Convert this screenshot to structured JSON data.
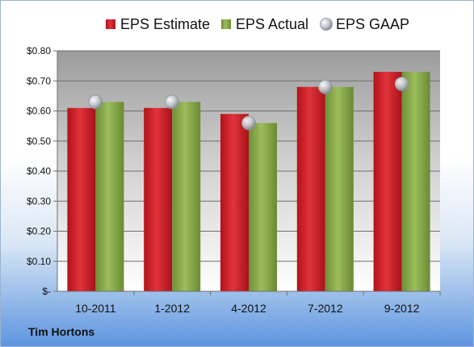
{
  "company_label": "Tim Hortons",
  "chart_data": {
    "type": "bar",
    "categories": [
      "10-2011",
      "1-2012",
      "4-2012",
      "7-2012",
      "9-2012"
    ],
    "series": [
      {
        "name": "EPS Estimate",
        "kind": "bar",
        "color": "#d0202a",
        "values": [
          0.61,
          0.61,
          0.59,
          0.68,
          0.73
        ]
      },
      {
        "name": "EPS Actual",
        "kind": "bar",
        "color": "#8aad4a",
        "values": [
          0.63,
          0.63,
          0.56,
          0.68,
          0.73
        ]
      },
      {
        "name": "EPS GAAP",
        "kind": "marker",
        "color": "#b9c0c9",
        "values": [
          0.63,
          0.63,
          0.56,
          0.68,
          0.69
        ]
      }
    ],
    "ylim": [
      0,
      0.8
    ],
    "yticks": [
      0,
      0.1,
      0.2,
      0.3,
      0.4,
      0.5,
      0.6,
      0.7,
      0.8
    ],
    "ytick_labels": [
      "$-",
      "$0.10",
      "$0.20",
      "$0.30",
      "$0.40",
      "$0.50",
      "$0.60",
      "$0.70",
      "$0.80"
    ],
    "legend_position": "top",
    "grid": true
  }
}
